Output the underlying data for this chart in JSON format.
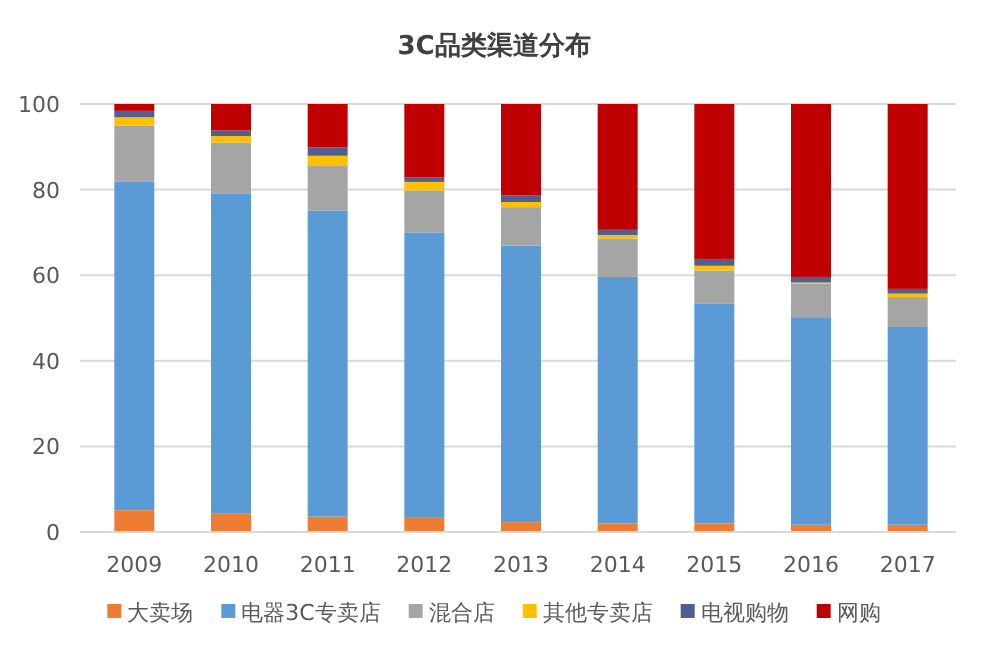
{
  "chart_data": {
    "type": "bar",
    "title": "3C品类渠道分布",
    "stacked": true,
    "grid": "y",
    "legend": "bottom",
    "categories": [
      "2009",
      "2010",
      "2011",
      "2012",
      "2013",
      "2014",
      "2015",
      "2016",
      "2017"
    ],
    "ylim": [
      0,
      100
    ],
    "yticks": [
      0,
      20,
      40,
      60,
      80,
      100
    ],
    "series": [
      {
        "name": "大卖场",
        "color": "#ed7d31",
        "values": [
          5.1,
          4.4,
          3.6,
          3.3,
          2.3,
          2.0,
          2.0,
          1.7,
          1.7
        ]
      },
      {
        "name": "电器3C专卖店",
        "color": "#5b9bd5",
        "values": [
          76.7,
          74.6,
          71.5,
          66.7,
          64.6,
          57.6,
          51.3,
          48.5,
          46.2
        ]
      },
      {
        "name": "混合店",
        "color": "#a5a5a5",
        "values": [
          13.1,
          12.0,
          10.4,
          9.8,
          9.0,
          9.0,
          7.8,
          7.8,
          7.0
        ]
      },
      {
        "name": "其他专卖店",
        "color": "#ffc000",
        "values": [
          2.0,
          1.5,
          2.4,
          2.0,
          1.2,
          0.8,
          1.1,
          0.3,
          0.8
        ]
      },
      {
        "name": "电视购物",
        "color": "#4f5f8f",
        "values": [
          1.5,
          1.3,
          2.0,
          1.1,
          1.6,
          1.2,
          1.6,
          1.3,
          1.1
        ]
      },
      {
        "name": "网购",
        "color": "#c00000",
        "values": [
          1.6,
          6.2,
          10.1,
          17.1,
          21.3,
          29.4,
          36.2,
          40.4,
          43.2
        ]
      }
    ]
  }
}
